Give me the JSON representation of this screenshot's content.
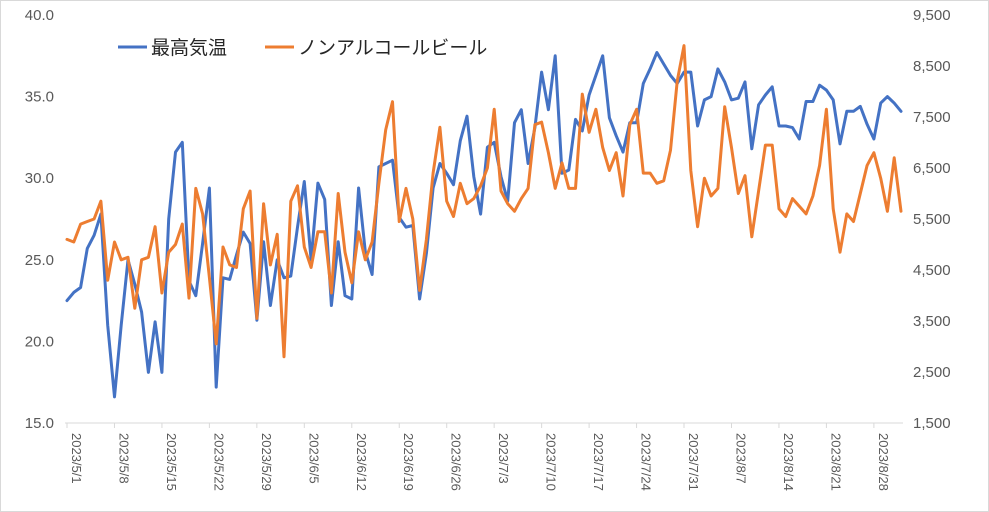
{
  "chart_data": {
    "type": "line",
    "title": "",
    "xlabel": "",
    "ylabel": "",
    "y2label": "",
    "grid": false,
    "legend_position": "top-left",
    "colors": {
      "temp": "#4472C4",
      "beer": "#ED7D31"
    },
    "ylim": [
      15,
      40
    ],
    "y2lim": [
      1500,
      9500
    ],
    "yticks": [
      "15.0",
      "20.0",
      "25.0",
      "30.0",
      "35.0",
      "40.0"
    ],
    "y2ticks": [
      "1,500",
      "2,500",
      "3,500",
      "4,500",
      "5,500",
      "6,500",
      "7,500",
      "8,500",
      "9,500"
    ],
    "x_tick_labels": [
      "2023/5/1",
      "2023/5/8",
      "2023/5/15",
      "2023/5/22",
      "2023/5/29",
      "2023/6/5",
      "2023/6/12",
      "2023/6/19",
      "2023/6/26",
      "2023/7/3",
      "2023/7/10",
      "2023/7/17",
      "2023/7/24",
      "2023/7/31",
      "2023/8/7",
      "2023/8/14",
      "2023/8/21",
      "2023/8/28"
    ],
    "x_start": "2023/5/1",
    "series": [
      {
        "name": "最高気温",
        "axis": "left",
        "values": [
          22.5,
          23,
          23.3,
          25.7,
          26.5,
          27.8,
          21,
          16.6,
          21,
          25,
          23.5,
          21.8,
          18.1,
          21.2,
          18.1,
          27.5,
          31.6,
          32.2,
          23.7,
          22.8,
          26,
          29.4,
          17.2,
          23.9,
          23.8,
          25.3,
          26.7,
          26,
          21.3,
          26.1,
          22.2,
          25,
          23.9,
          24,
          27,
          29.8,
          25,
          29.7,
          28.7,
          22.2,
          26.1,
          22.8,
          22.6,
          29.4,
          25.5,
          24.1,
          30.7,
          30.9,
          31.1,
          27.6,
          27,
          27.1,
          22.6,
          25.4,
          29.4,
          30.9,
          30.3,
          29.6,
          32.3,
          33.8,
          30.1,
          27.8,
          31.9,
          32.2,
          30.1,
          28.6,
          33.4,
          34.2,
          30.9,
          33.1,
          36.5,
          34.2,
          37.5,
          30.3,
          30.5,
          33.6,
          32.9,
          35.1,
          36.3,
          37.5,
          33.7,
          32.6,
          31.6,
          33.4,
          33.4,
          35.8,
          36.7,
          37.7,
          37,
          36.3,
          35.8,
          36.5,
          36.5,
          33.2,
          34.8,
          35,
          36.7,
          35.9,
          34.8,
          34.9,
          35.9,
          31.8,
          34.5,
          35.1,
          35.6,
          33.2,
          33.2,
          33.1,
          32.4,
          34.7,
          34.7,
          35.7,
          35.4,
          34.8,
          32.1,
          34.1,
          34.1,
          34.4,
          33.3,
          32.4,
          34.6,
          35.0,
          34.6,
          34.1
        ]
      },
      {
        "name": "ノンアルコールビール",
        "axis": "right",
        "values": [
          5100,
          5050,
          5400,
          5450,
          5500,
          5850,
          4300,
          5050,
          4700,
          4750,
          3750,
          4700,
          4750,
          5350,
          4050,
          4850,
          5000,
          5400,
          3950,
          6100,
          5600,
          4350,
          3050,
          4950,
          4600,
          4550,
          5700,
          6050,
          3550,
          5800,
          4600,
          5200,
          2800,
          5850,
          6150,
          4950,
          4550,
          5250,
          5250,
          4050,
          6000,
          4850,
          4250,
          5250,
          4700,
          5050,
          6200,
          7250,
          7800,
          5450,
          6100,
          5500,
          4100,
          5100,
          6400,
          7300,
          5850,
          5550,
          6200,
          5800,
          5900,
          6150,
          6500,
          7650,
          6050,
          5800,
          5650,
          5900,
          6100,
          7350,
          7400,
          6800,
          6100,
          6600,
          6100,
          6100,
          7950,
          7200,
          7650,
          6900,
          6450,
          6800,
          5950,
          7350,
          7650,
          6400,
          6400,
          6200,
          6250,
          6850,
          8200,
          8900,
          6450,
          5350,
          6300,
          5950,
          6100,
          7700,
          6900,
          6000,
          6350,
          5150,
          6050,
          6950,
          6950,
          5700,
          5550,
          5900,
          5750,
          5600,
          5950,
          6550,
          7650,
          5700,
          4850,
          5600,
          5450,
          6000,
          6550,
          6800,
          6300,
          5650,
          6700,
          5650
        ]
      }
    ]
  }
}
